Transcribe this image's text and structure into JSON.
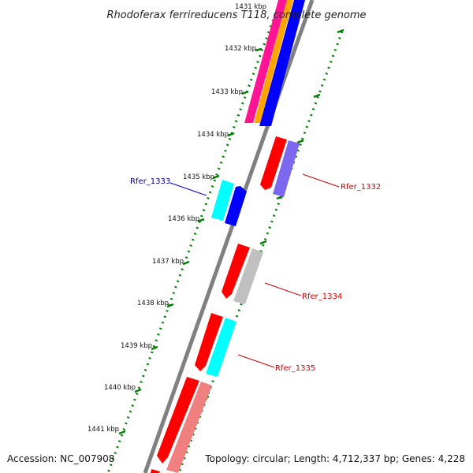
{
  "title": "Rhodoferax ferrireducens T118, complete genome",
  "accession": "Accession: NC_007908",
  "topology": "Topology: circular; Length: 4,712,337 bp; Genes: 4,228",
  "ticks": [
    "1431 kbp",
    "1432 kbp",
    "1433 kbp",
    "1434 kbp",
    "1435 kbp",
    "1436 kbp",
    "1437 kbp",
    "1438 kbp",
    "1439 kbp",
    "1440 kbp",
    "1441 kbp"
  ],
  "gene_labels": [
    {
      "id": "rfer-1333",
      "text": "Rfer_1333",
      "color": "#00008b"
    },
    {
      "id": "rfer-1332",
      "text": "Rfer_1332",
      "color": "#cc0000"
    },
    {
      "id": "rfer-1334",
      "text": "Rfer_1334",
      "color": "#cc0000"
    },
    {
      "id": "rfer-1335",
      "text": "Rfer_1335",
      "color": "#cc0000"
    }
  ],
  "colors": {
    "backbone": "#808080",
    "tick_dots": "#008000",
    "red": "#ff0000",
    "blue": "#0000ff",
    "cyan": "#00ffff",
    "purple": "#7b68ee",
    "gray": "#c0c0c0",
    "salmon": "#f08080",
    "orange": "#ffa500",
    "magenta": "#ff1493"
  }
}
